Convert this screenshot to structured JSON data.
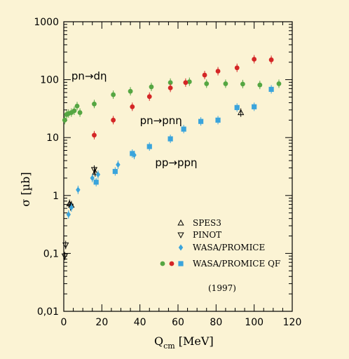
{
  "chart_data": {
    "type": "scatter",
    "xlabel": "Q",
    "xlabel_sub": "cm",
    "xlabel_unit": " [MeV]",
    "ylabel": "σ [µb]",
    "xlim": [
      0,
      120
    ],
    "ylim": [
      0.01,
      1000
    ],
    "y_scale": "log",
    "x_ticks": [
      "0",
      "20",
      "40",
      "60",
      "80",
      "100",
      "120"
    ],
    "y_ticks": [
      "0,01",
      "0,1",
      "1",
      "10",
      "100",
      "1000"
    ],
    "annotations": [
      {
        "text": "pn→dη",
        "x": 4,
        "y": 100
      },
      {
        "text": "pn→pnη",
        "x": 40,
        "y": 17
      },
      {
        "text": "pp→ppη",
        "x": 48,
        "y": 3.2
      }
    ],
    "legend_placement": "bottom-right",
    "legend_note": "(1997)",
    "colors": {
      "green": "#55a642",
      "red": "#d42626",
      "blue": "#3aa4dc",
      "background": "#fbf3d4"
    },
    "series": [
      {
        "name": "SPES3",
        "marker": "triangle-up-open",
        "color": "#000000",
        "points": [
          [
            3,
            0.72
          ],
          [
            4,
            0.68
          ],
          [
            16.5,
            2.5
          ],
          [
            93,
            27
          ]
        ]
      },
      {
        "name": "PINOT",
        "marker": "triangle-down-open",
        "color": "#000000",
        "points": [
          [
            1,
            0.14
          ],
          [
            0.5,
            0.09
          ],
          [
            3.5,
            0.65
          ],
          [
            16,
            2.8
          ]
        ]
      },
      {
        "name": "WASA/PROMICE",
        "marker": "diamond",
        "color": "#3aa4dc",
        "points": [
          [
            2.5,
            0.47
          ],
          [
            4,
            0.62
          ],
          [
            7.5,
            1.25
          ],
          [
            15,
            2.0
          ],
          [
            18,
            2.3
          ],
          [
            28.5,
            3.4
          ],
          [
            37,
            5.0
          ]
        ]
      },
      {
        "name": "WASA/PROMICE QF",
        "marker": "square",
        "color": "#3aa4dc",
        "points": [
          [
            17,
            1.7
          ],
          [
            27,
            2.6
          ],
          [
            36,
            5.3
          ],
          [
            45,
            7.0
          ],
          [
            56,
            9.5
          ],
          [
            63,
            14.0
          ],
          [
            72,
            19.0
          ],
          [
            81,
            20.0
          ],
          [
            91,
            33.0
          ],
          [
            100,
            34.0
          ],
          [
            109,
            68.0
          ]
        ]
      },
      {
        "name": "pn→dη (WASA/PROMICE QF)",
        "marker": "circle",
        "color": "#55a642",
        "points": [
          [
            0.5,
            20
          ],
          [
            1.5,
            25
          ],
          [
            2.5,
            26
          ],
          [
            4,
            27
          ],
          [
            5.5,
            29
          ],
          [
            7,
            35
          ],
          [
            8.5,
            27
          ],
          [
            16,
            38
          ],
          [
            26,
            55
          ],
          [
            35,
            63
          ],
          [
            46,
            75
          ],
          [
            56,
            89
          ],
          [
            66,
            92
          ],
          [
            75,
            85
          ],
          [
            85,
            85
          ],
          [
            94,
            84
          ],
          [
            103,
            81
          ],
          [
            113,
            85
          ]
        ]
      },
      {
        "name": "pn→pnη (WASA/PROMICE QF)",
        "marker": "circle",
        "color": "#d42626",
        "points": [
          [
            16,
            11
          ],
          [
            26,
            20
          ],
          [
            36,
            34
          ],
          [
            45,
            51
          ],
          [
            56,
            72
          ],
          [
            64,
            89
          ],
          [
            74,
            120
          ],
          [
            81,
            140
          ],
          [
            91,
            160
          ],
          [
            100,
            225
          ],
          [
            109,
            220
          ]
        ]
      }
    ]
  }
}
